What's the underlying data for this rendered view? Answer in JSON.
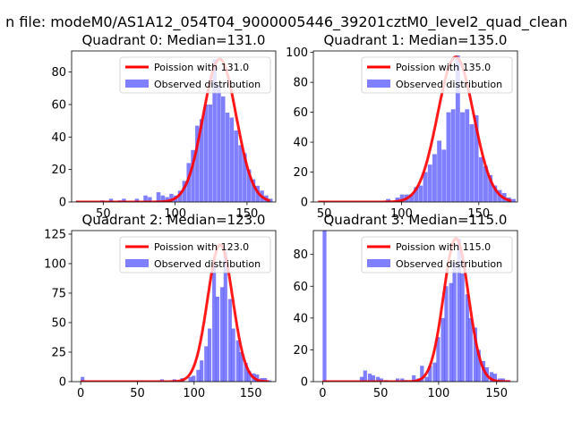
{
  "figure_title": "n file: modeM0/AS1A12_054T04_9000005446_39201cztM0_level2_quad_clean",
  "chart_data": [
    {
      "type": "bar",
      "title": "Quadrant 0: Median=131.0",
      "legend": {
        "placement": "top-right",
        "fit_label": "Poission with 131.0",
        "hist_label": "Observed distribution"
      },
      "xlim": [
        28,
        170
      ],
      "ylim": [
        0,
        93
      ],
      "xticks": [
        50,
        100,
        150
      ],
      "yticks": [
        0,
        20,
        40,
        60,
        80
      ],
      "bin_width": 3,
      "bins": [
        [
          48,
          1
        ],
        [
          54,
          2
        ],
        [
          60,
          1
        ],
        [
          63,
          2
        ],
        [
          72,
          2
        ],
        [
          78,
          4
        ],
        [
          81,
          3
        ],
        [
          87,
          6
        ],
        [
          90,
          4
        ],
        [
          93,
          3
        ],
        [
          96,
          5
        ],
        [
          99,
          4
        ],
        [
          102,
          7
        ],
        [
          105,
          13
        ],
        [
          108,
          24
        ],
        [
          111,
          32
        ],
        [
          114,
          47
        ],
        [
          117,
          51
        ],
        [
          120,
          60
        ],
        [
          123,
          60
        ],
        [
          126,
          88
        ],
        [
          129,
          72
        ],
        [
          132,
          65
        ],
        [
          135,
          55
        ],
        [
          138,
          52
        ],
        [
          141,
          44
        ],
        [
          144,
          35
        ],
        [
          147,
          30
        ],
        [
          150,
          20
        ],
        [
          153,
          14
        ],
        [
          156,
          10
        ],
        [
          159,
          7
        ],
        [
          162,
          4
        ],
        [
          165,
          2
        ]
      ],
      "poisson": {
        "mean": 131.0,
        "x_range": [
          31,
          166
        ],
        "peak": 88
      }
    },
    {
      "type": "bar",
      "title": "Quadrant 1: Median=135.0",
      "legend": {
        "placement": "top-right",
        "fit_label": "Poission with 135.0",
        "hist_label": "Observed distribution"
      },
      "xlim": [
        43,
        175
      ],
      "ylim": [
        0,
        101
      ],
      "xticks": [
        50,
        100,
        150
      ],
      "yticks": [
        0,
        20,
        40,
        60,
        80,
        100
      ],
      "bin_width": 3,
      "bins": [
        [
          90,
          2
        ],
        [
          96,
          3
        ],
        [
          99,
          5
        ],
        [
          102,
          5
        ],
        [
          105,
          5
        ],
        [
          108,
          10
        ],
        [
          111,
          11
        ],
        [
          114,
          20
        ],
        [
          117,
          25
        ],
        [
          120,
          32
        ],
        [
          123,
          41
        ],
        [
          126,
          35
        ],
        [
          129,
          60
        ],
        [
          132,
          62
        ],
        [
          135,
          98
        ],
        [
          138,
          60
        ],
        [
          141,
          62
        ],
        [
          144,
          52
        ],
        [
          147,
          58
        ],
        [
          150,
          30
        ],
        [
          153,
          24
        ],
        [
          156,
          18
        ],
        [
          159,
          11
        ],
        [
          162,
          8
        ],
        [
          165,
          6
        ],
        [
          168,
          3
        ],
        [
          171,
          2
        ]
      ],
      "poisson": {
        "mean": 135.0,
        "x_range": [
          46,
          171
        ],
        "peak": 97
      }
    },
    {
      "type": "bar",
      "title": "Quadrant 2: Median=123.0",
      "legend": {
        "placement": "top-right",
        "fit_label": "Poission with 123.0",
        "hist_label": "Observed distribution"
      },
      "xlim": [
        -8,
        172
      ],
      "ylim": [
        0,
        128
      ],
      "xticks": [
        0,
        50,
        100,
        150
      ],
      "yticks": [
        0,
        25,
        50,
        75,
        100,
        125
      ],
      "bin_width": 3.5,
      "bins": [
        [
          0,
          4
        ],
        [
          53,
          1
        ],
        [
          70,
          2
        ],
        [
          81,
          2
        ],
        [
          88,
          3
        ],
        [
          95,
          4
        ],
        [
          98,
          5
        ],
        [
          102,
          10
        ],
        [
          105,
          18
        ],
        [
          109,
          30
        ],
        [
          112,
          45
        ],
        [
          116,
          100
        ],
        [
          119,
          72
        ],
        [
          123,
          80
        ],
        [
          126,
          110
        ],
        [
          130,
          70
        ],
        [
          133,
          45
        ],
        [
          137,
          35
        ],
        [
          140,
          25
        ],
        [
          144,
          16
        ],
        [
          147,
          9
        ],
        [
          151,
          7
        ],
        [
          154,
          6
        ],
        [
          158,
          3
        ],
        [
          161,
          3
        ],
        [
          165,
          1
        ]
      ],
      "poisson": {
        "mean": 123.0,
        "x_range": [
          0,
          166
        ],
        "peak": 116
      }
    },
    {
      "type": "bar",
      "title": "Quadrant 3: Median=115.0",
      "legend": {
        "placement": "top-right",
        "fit_label": "Poission with 115.0",
        "hist_label": "Observed distribution"
      },
      "xlim": [
        -8,
        168
      ],
      "ylim": [
        0,
        95
      ],
      "xticks": [
        0,
        50,
        100,
        150
      ],
      "yticks": [
        0,
        20,
        40,
        60,
        80
      ],
      "bin_width": 3.5,
      "bins": [
        [
          0,
          96
        ],
        [
          32,
          3
        ],
        [
          35,
          7
        ],
        [
          39,
          5
        ],
        [
          42,
          4
        ],
        [
          46,
          3
        ],
        [
          49,
          2
        ],
        [
          53,
          1
        ],
        [
          63,
          2
        ],
        [
          67,
          2
        ],
        [
          70,
          1
        ],
        [
          77,
          4
        ],
        [
          81,
          2
        ],
        [
          84,
          10
        ],
        [
          88,
          3
        ],
        [
          91,
          10
        ],
        [
          95,
          12
        ],
        [
          98,
          28
        ],
        [
          102,
          40
        ],
        [
          105,
          60
        ],
        [
          109,
          62
        ],
        [
          112,
          75
        ],
        [
          116,
          90
        ],
        [
          119,
          68
        ],
        [
          123,
          55
        ],
        [
          126,
          40
        ],
        [
          130,
          34
        ],
        [
          133,
          20
        ],
        [
          137,
          13
        ],
        [
          140,
          9
        ],
        [
          144,
          6
        ],
        [
          147,
          5
        ],
        [
          151,
          2
        ],
        [
          154,
          2
        ],
        [
          158,
          1
        ]
      ],
      "poisson": {
        "mean": 115.0,
        "x_range": [
          0,
          162
        ],
        "peak": 90
      }
    }
  ]
}
